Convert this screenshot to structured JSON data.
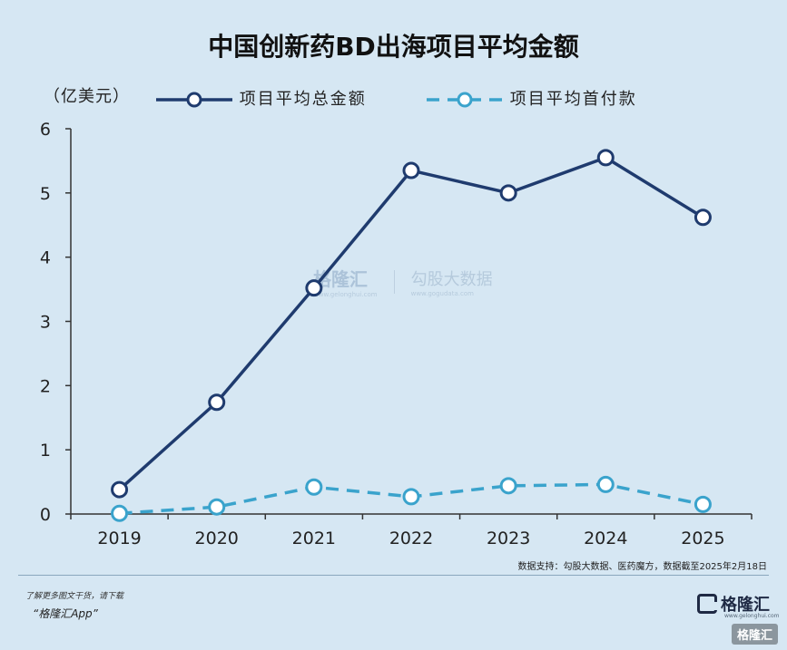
{
  "header": {
    "title": "中国创新药BD出海项目平均金额"
  },
  "unit_label": "（亿美元）",
  "legend": {
    "total": "项目平均总金额",
    "upfront": "项目平均首付款"
  },
  "colors": {
    "total": "#1f3b6e",
    "upfront": "#3aa3cc",
    "axis": "#333333",
    "background": "#d6e7f3"
  },
  "chart_data": {
    "type": "line",
    "title": "中国创新药BD出海项目平均金额",
    "ylabel": "（亿美元）",
    "xlabel": "",
    "x": [
      "2019",
      "2020",
      "2021",
      "2022",
      "2023",
      "2024",
      "2025"
    ],
    "ylim": [
      0,
      6
    ],
    "yticks": [
      0,
      1,
      2,
      3,
      4,
      5,
      6
    ],
    "grid": false,
    "legend_position": "top",
    "series": [
      {
        "name": "项目平均总金额",
        "style": "solid",
        "values": [
          0.38,
          1.74,
          3.52,
          5.35,
          5.0,
          5.55,
          4.62
        ]
      },
      {
        "name": "项目平均首付款",
        "style": "dashed",
        "values": [
          0.01,
          0.11,
          0.42,
          0.27,
          0.44,
          0.46,
          0.15
        ]
      }
    ]
  },
  "source_note": "数据支持：勾股大数据、医药魔方，数据截至2025年2月18日",
  "watermark": {
    "brand": "格隆汇",
    "brand_url": "www.gelonghui.com",
    "partner": "勾股大数据",
    "partner_url": "www.gogudata.com"
  },
  "footer": {
    "promo_line1": "了解更多图文干货，请下载",
    "promo_line2": "“格隆汇App”",
    "brand_name": "格隆汇",
    "brand_url": "www.gelonghui.com",
    "corner_watermark": "格隆汇"
  }
}
